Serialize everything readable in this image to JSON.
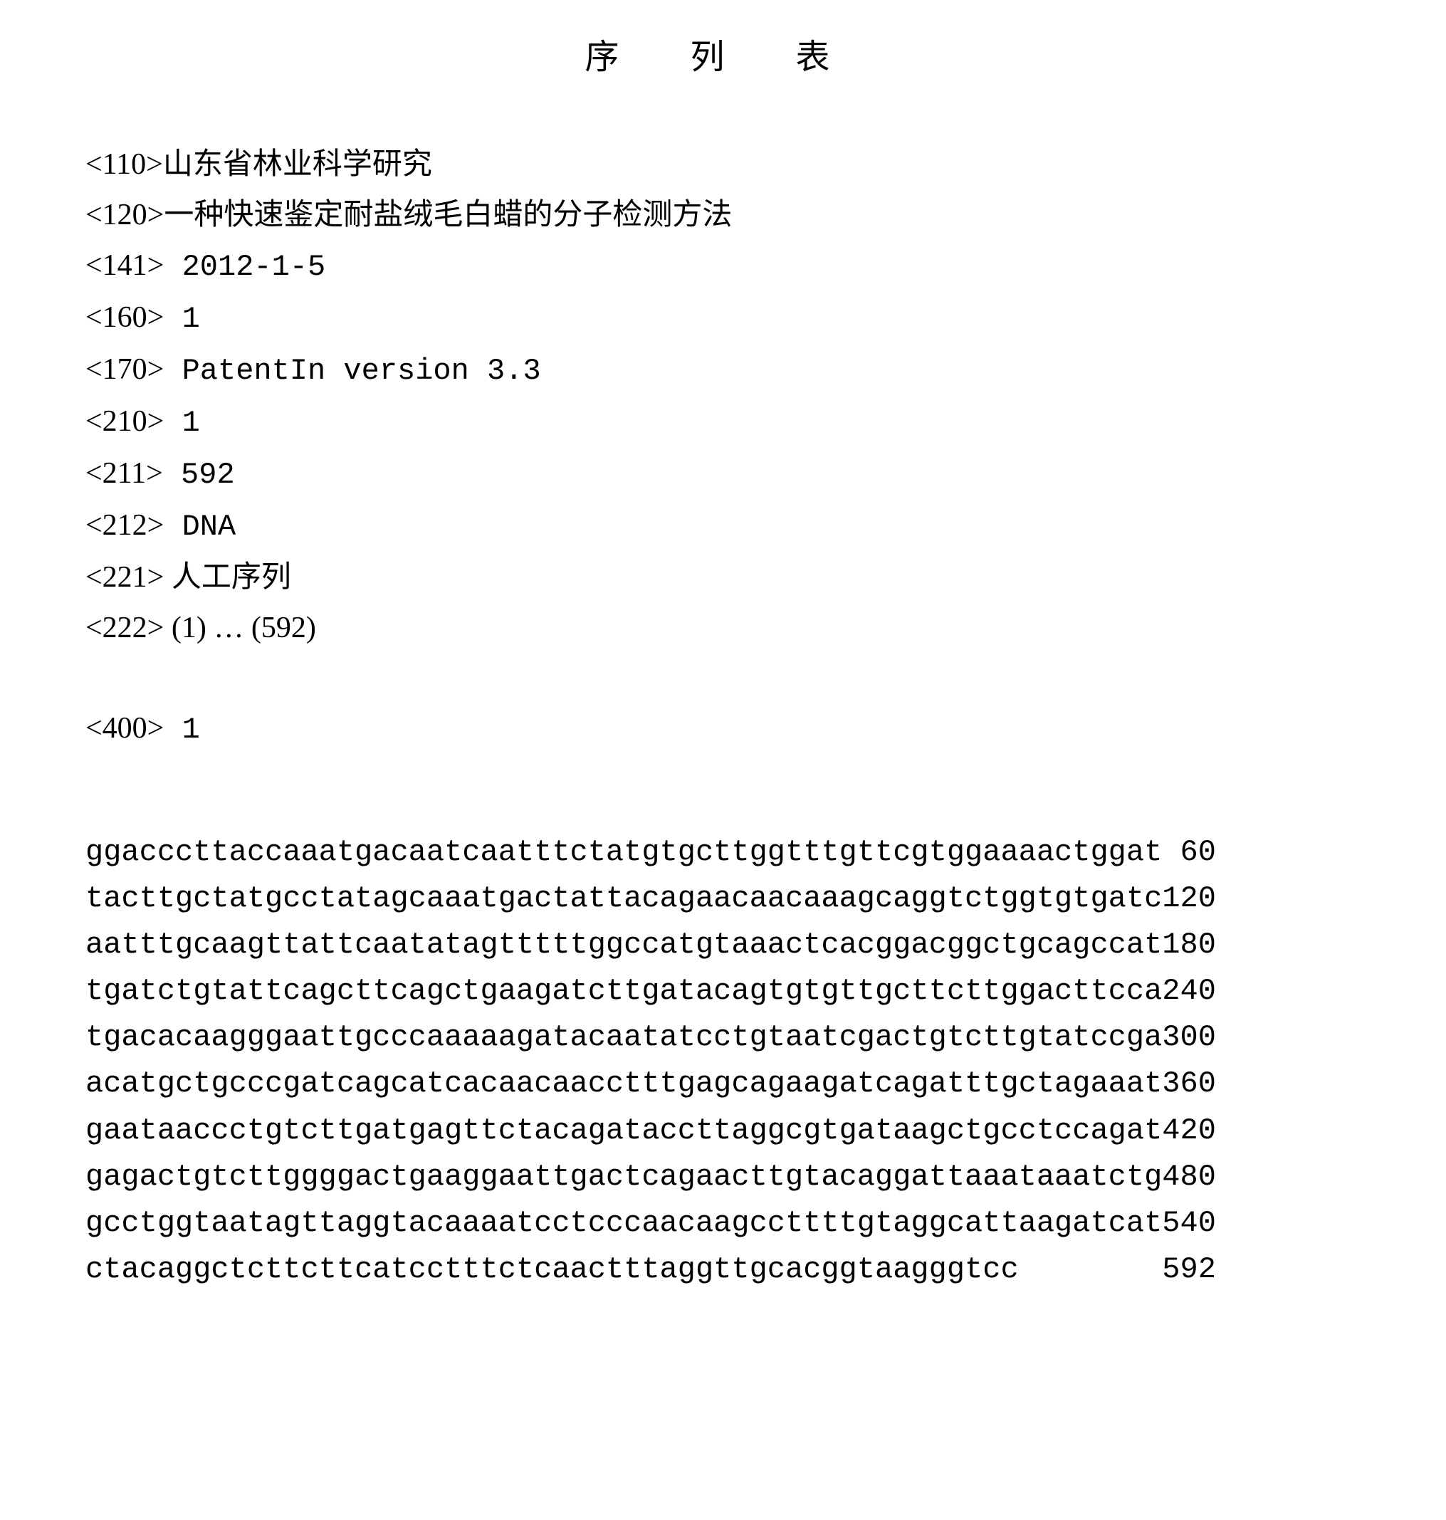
{
  "title": "序 列 表",
  "metadata": {
    "110": {
      "tag": "<110>",
      "value": "山东省林业科学研究"
    },
    "120": {
      "tag": "<120>",
      "value": "一种快速鉴定耐盐绒毛白蜡的分子检测方法"
    },
    "141": {
      "tag": "<141>",
      "value": " 2012-1-5"
    },
    "160": {
      "tag": "<160>",
      "value": " 1"
    },
    "170": {
      "tag": "<170>",
      "value": " PatentIn version 3.3"
    },
    "210": {
      "tag": "<210>",
      "value": " 1"
    },
    "211": {
      "tag": "<211>",
      "value": " 592"
    },
    "212": {
      "tag": "<212>",
      "value": " DNA"
    },
    "221": {
      "tag": "<221>",
      "value": " 人工序列"
    },
    "222": {
      "tag": "<222>",
      "value": " (1) … (592)"
    },
    "400": {
      "tag": "<400>",
      "value": " 1"
    }
  },
  "sequence": {
    "rows": [
      {
        "b1": "ggacccttac",
        "b2": "caaatgacaa",
        "b3": "tcaatttcta",
        "b4": "tgtgcttggt",
        "b5": "ttgttcgtgg",
        "b6": "aaaactggat",
        "pos": "60"
      },
      {
        "b1": "tacttgctat",
        "b2": "gcctatagca",
        "b3": "aatgactatt",
        "b4": "acagaacaac",
        "b5": "aaagcaggtc",
        "b6": "tggtgtgatc",
        "pos": "120"
      },
      {
        "b1": "aatttgcaag",
        "b2": "ttattcaata",
        "b3": "tagtttttgg",
        "b4": "ccatgtaaac",
        "b5": "tcacggacgg",
        "b6": "ctgcagccat",
        "pos": "180"
      },
      {
        "b1": "tgatctgtat",
        "b2": "tcagcttcag",
        "b3": "ctgaagatct",
        "b4": "tgatacagtg",
        "b5": "tgttgcttct",
        "b6": "tggacttcca",
        "pos": "240"
      },
      {
        "b1": "tgacacaagg",
        "b2": "gaattgccca",
        "b3": "aaaagataca",
        "b4": "atatcctgta",
        "b5": "atcgactgtc",
        "b6": "ttgtatccga",
        "pos": "300"
      },
      {
        "b1": "acatgctgcc",
        "b2": "cgatcagcat",
        "b3": "cacaacaacc",
        "b4": "tttgagcaga",
        "b5": "agatcagatt",
        "b6": "tgctagaaat",
        "pos": "360"
      },
      {
        "b1": "gaataaccct",
        "b2": "gtcttgatga",
        "b3": "gttctacaga",
        "b4": "taccttaggc",
        "b5": "gtgataagct",
        "b6": "gcctccagat",
        "pos": "420"
      },
      {
        "b1": "gagactgtct",
        "b2": "tggggactga",
        "b3": "aggaattgac",
        "b4": "tcagaacttg",
        "b5": "tacaggatta",
        "b6": "aataaatctg",
        "pos": "480"
      },
      {
        "b1": "gcctggtaat",
        "b2": "agttaggtac",
        "b3": "aaaatcctcc",
        "b4": "caacaagcct",
        "b5": "tttgtaggca",
        "b6": "ttaagatcat",
        "pos": "540"
      },
      {
        "b1": "ctacaggctc",
        "b2": "ttcttcatcc",
        "b3": "tttctcaact",
        "b4": "ttaggttgca",
        "b5": "cggtaagggt",
        "b6": "cc",
        "pos": "592"
      }
    ]
  }
}
